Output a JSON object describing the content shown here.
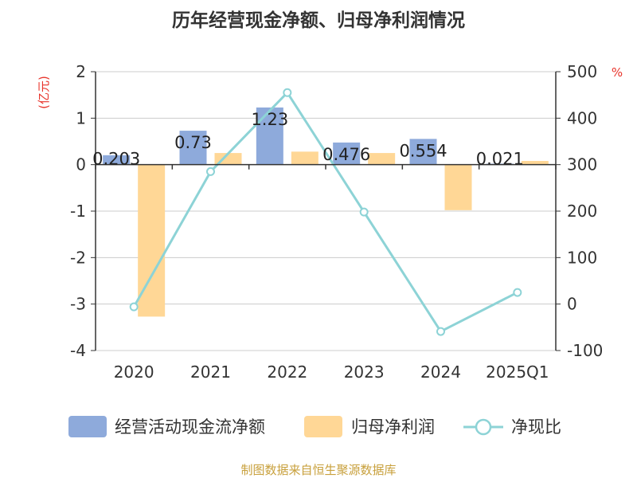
{
  "chart_data": {
    "type": "bar",
    "title": "历年经营现金净额、归母净利润情况",
    "categories": [
      "2020",
      "2021",
      "2022",
      "2023",
      "2024",
      "2025Q1"
    ],
    "y_left": {
      "unit_label": "(亿元)",
      "range": [
        -4,
        2
      ],
      "ticks": [
        2,
        1,
        0,
        -1,
        -2,
        -3,
        -4
      ]
    },
    "y_right": {
      "unit_label": "%",
      "range": [
        -100,
        500
      ],
      "ticks": [
        500,
        400,
        300,
        200,
        100,
        0,
        -100
      ]
    },
    "series": [
      {
        "name": "经营活动现金流净额",
        "type": "bar",
        "axis": "left",
        "color": "#8eaadb",
        "values": [
          0.203,
          0.73,
          1.23,
          0.476,
          0.554,
          0.021
        ],
        "labels": [
          "0.203",
          "0.73",
          "1.23",
          "0.476",
          "0.554",
          "0.021"
        ]
      },
      {
        "name": "归母净利润",
        "type": "bar",
        "axis": "left",
        "color": "#ffd796",
        "values": [
          -3.27,
          0.25,
          0.28,
          0.25,
          -0.98,
          0.08
        ]
      },
      {
        "name": "净现比",
        "type": "line",
        "axis": "right",
        "color": "#8dd3d6",
        "values": [
          -6,
          285,
          455,
          198,
          -59,
          25
        ]
      }
    ],
    "grid": true,
    "legend_position": "bottom"
  },
  "source": "制图数据来自恒生聚源数据库"
}
